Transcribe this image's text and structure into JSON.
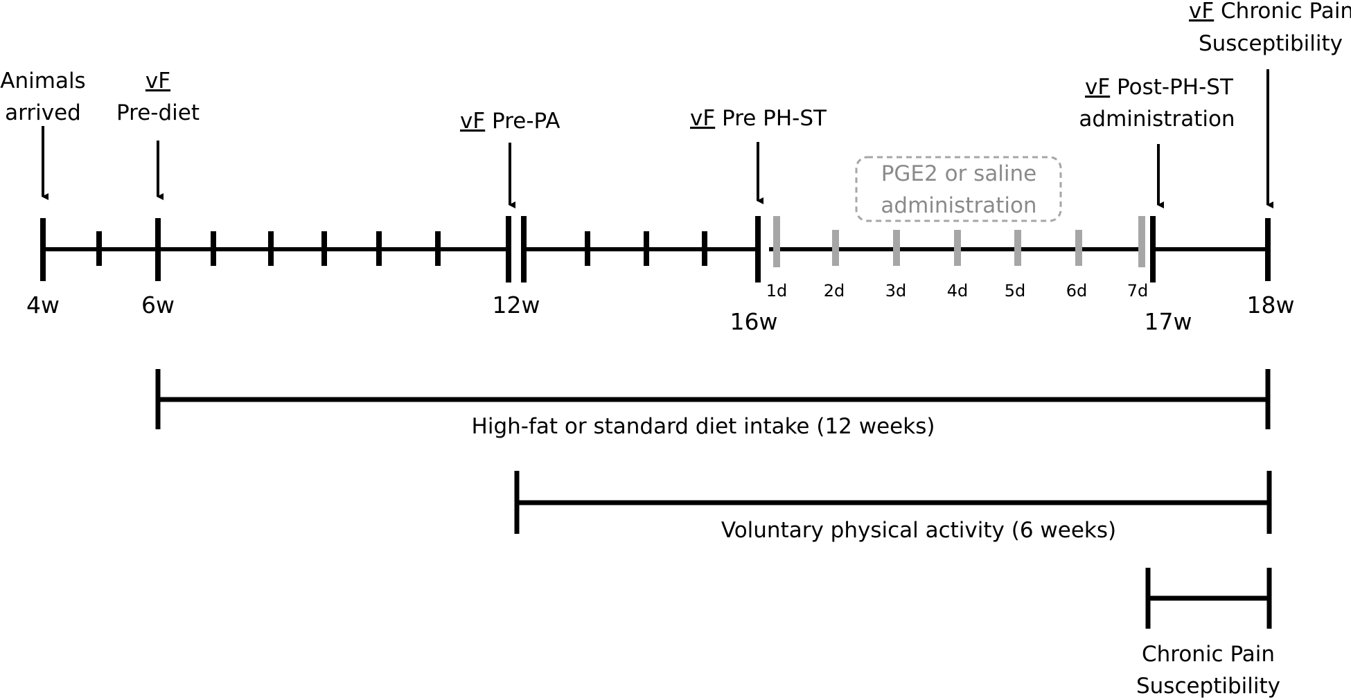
{
  "events": {
    "arrived": {
      "line1": "Animals",
      "line2": "arrived"
    },
    "pre_diet": {
      "vf": "vF",
      "line2": "Pre-diet"
    },
    "pre_pa": {
      "vf": "vF",
      "rest": " Pre-PA"
    },
    "pre_phst": {
      "vf": "vF",
      "rest": " Pre PH-ST"
    },
    "post_phst": {
      "vf": "vF",
      "rest": " Post-PH-ST",
      "line2": "administration"
    },
    "chronic": {
      "vf": "vF",
      "rest": " Chronic Pain",
      "line2": "Susceptibility"
    }
  },
  "pge2_box": {
    "line1": "PGE2 or saline",
    "line2": "administration"
  },
  "week_labels": [
    "4w",
    "6w",
    "12w",
    "16w",
    "17w",
    "18w"
  ],
  "day_labels": [
    "1d",
    "2d",
    "3d",
    "4d",
    "5d",
    "6d",
    "7d"
  ],
  "periods": {
    "diet": "High-fat or standard diet intake (12 weeks)",
    "activity": "Voluntary physical activity (6 weeks)",
    "pain_line1": "Chronic Pain",
    "pain_line2": "Susceptibility"
  },
  "colors": {
    "main": "#000000",
    "day_tick": "#a6a6a6",
    "box_text": "#8a8a8a"
  }
}
